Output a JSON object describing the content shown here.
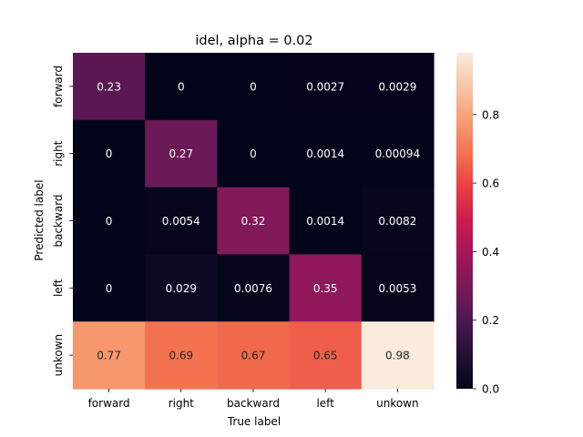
{
  "chart_data": {
    "type": "heatmap",
    "title": "idel, alpha = 0.02",
    "xlabel": "True label",
    "ylabel": "Predicted label",
    "x_categories": [
      "forward",
      "right",
      "backward",
      "left",
      "unkown"
    ],
    "y_categories": [
      "forward",
      "right",
      "backward",
      "left",
      "unkown"
    ],
    "values": [
      [
        0.23,
        0,
        0,
        0.0027,
        0.0029
      ],
      [
        0,
        0.27,
        0,
        0.0014,
        0.00094
      ],
      [
        0,
        0.0054,
        0.32,
        0.0014,
        0.0082
      ],
      [
        0,
        0.029,
        0.0076,
        0.35,
        0.0053
      ],
      [
        0.77,
        0.69,
        0.67,
        0.65,
        0.98
      ]
    ],
    "annotations": [
      [
        "0.23",
        "0",
        "0",
        "0.0027",
        "0.0029"
      ],
      [
        "0",
        "0.27",
        "0",
        "0.0014",
        "0.00094"
      ],
      [
        "0",
        "0.0054",
        "0.32",
        "0.0014",
        "0.0082"
      ],
      [
        "0",
        "0.029",
        "0.0076",
        "0.35",
        "0.0053"
      ],
      [
        "0.77",
        "0.69",
        "0.67",
        "0.65",
        "0.98"
      ]
    ],
    "colorbar": {
      "vmin": 0,
      "vmax": 0.98,
      "ticks": [
        0.0,
        0.2,
        0.4,
        0.6,
        0.8
      ],
      "tick_labels": [
        "0.0",
        "0.2",
        "0.4",
        "0.6",
        "0.8"
      ]
    },
    "colormap": "rocket"
  }
}
